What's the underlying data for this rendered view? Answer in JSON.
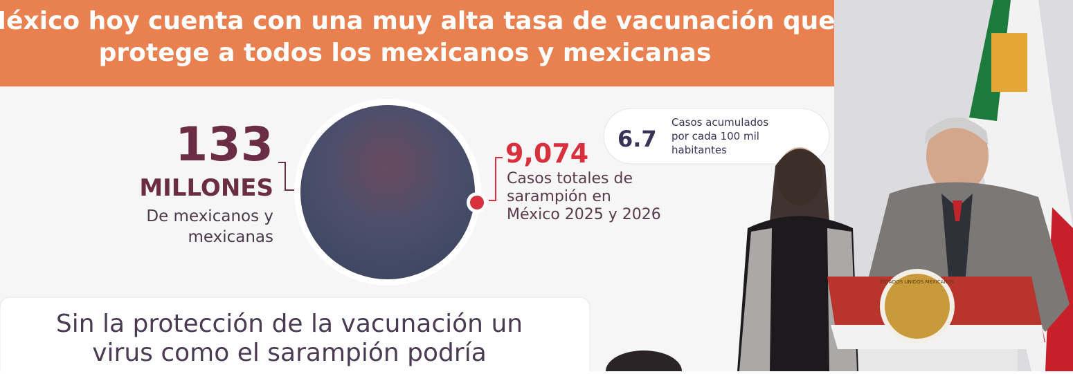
{
  "screen": {
    "banner": {
      "lines": [
        "México hoy cuenta con una muy alta tasa de vacunación que",
        "protege a todos los mexicanos y mexicanas"
      ]
    },
    "population": {
      "number": "133",
      "unit": "MILLONES",
      "lines": [
        "De mexicanos y",
        "mexicanas"
      ]
    },
    "cases": {
      "number": "9,074",
      "lines": [
        "Casos totales de",
        "sarampión en",
        "México 2025 y 2026"
      ]
    },
    "rate": {
      "number": "6.7",
      "lines": [
        "Casos acumulados",
        "por cada 100 mil",
        "habitantes"
      ]
    },
    "note": {
      "lines": [
        "Sin la protección de la vacunación un",
        "virus como el sarampión podría"
      ]
    }
  },
  "podium": {
    "seal": "ESTADOS UNIDOS MEXICANOS"
  }
}
